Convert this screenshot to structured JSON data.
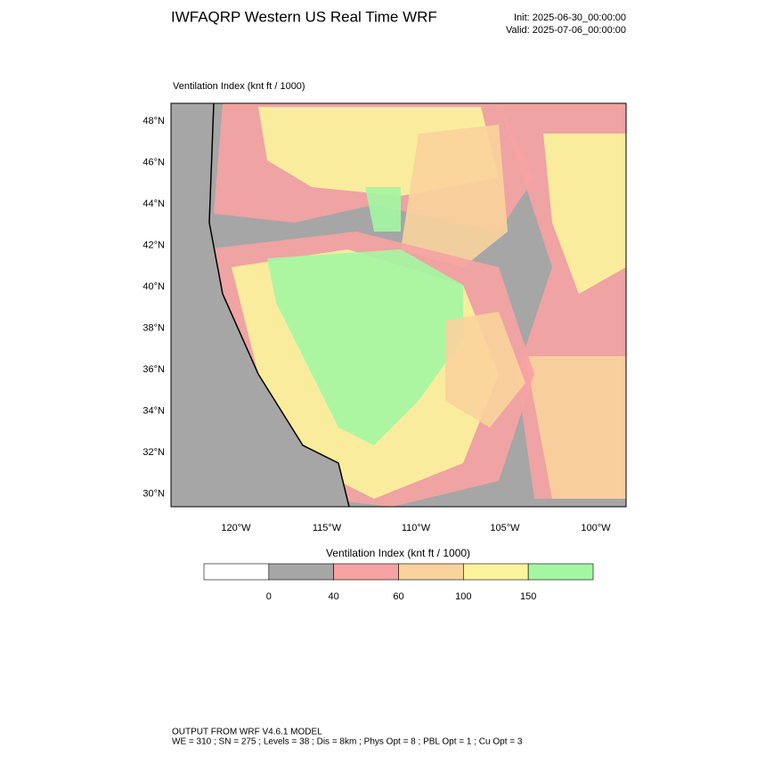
{
  "header": {
    "title": "IWFAQRP Western US Real Time WRF",
    "init": "Init: 2025-06-30_00:00:00",
    "valid": "Valid: 2025-07-06_00:00:00"
  },
  "map": {
    "label": "Ventilation Index   (knt ft / 1000)",
    "lat_labels": [
      "48°N",
      "46°N",
      "44°N",
      "42°N",
      "40°N",
      "38°N",
      "36°N",
      "34°N",
      "32°N",
      "30°N"
    ],
    "lon_labels": [
      "120°W",
      "115°W",
      "110°W",
      "105°W",
      "100°W"
    ]
  },
  "colorbar": {
    "title": "Ventilation Index   (knt ft / 1000)",
    "colors": [
      "#ffffff",
      "#a6a6a6",
      "#f7a3a3",
      "#f9d39c",
      "#fbf49c",
      "#a3f7a3"
    ],
    "ticks": [
      0,
      40,
      60,
      100,
      150
    ]
  },
  "footer": {
    "line1": "OUTPUT FROM WRF V4.6.1 MODEL",
    "line2": "WE = 310 ; SN = 275 ; Levels = 38 ; Dis = 8km ; Phys Opt = 8 ; PBL Opt = 1 ; Cu Opt = 3"
  }
}
